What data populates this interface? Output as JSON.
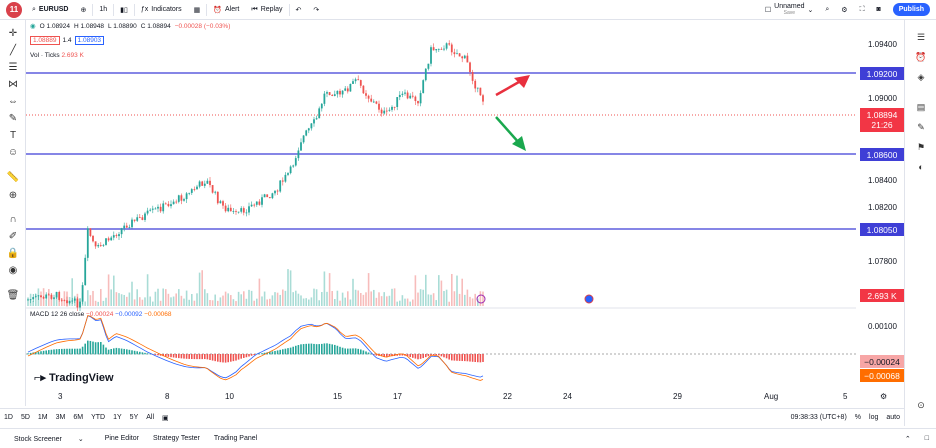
{
  "toolbar": {
    "symbol": "EURUSD",
    "interval": "1h",
    "indicators": "Indicators",
    "alert": "Alert",
    "replay": "Replay",
    "layout_name": "Unnamed",
    "layout_status": "Save",
    "publish": "Publish",
    "badge": "11"
  },
  "legend": {
    "o": "O 1.08924",
    "h": "H 1.08948",
    "l": "L 1.08890",
    "c": "C 1.08894",
    "chg": "−0.00028 (−0.03%)",
    "bid": "1.08889",
    "spread": "1.4",
    "ask": "1.08903",
    "vol_label": "Vol · Ticks",
    "vol_value": "2.693 K",
    "macd_label": "MACD 12 26 close",
    "macd_v1": "−0.00024",
    "macd_v2": "−0.00092",
    "macd_v3": "−0.00068"
  },
  "price_axis": {
    "ticks": [
      "1.09400",
      "1.09000",
      "1.08600",
      "1.08400",
      "1.08200",
      "1.07800"
    ],
    "level_1": "1.09200",
    "level_2": "1.08600",
    "level_3": "1.08050",
    "current": "1.08894",
    "countdown": "21:26",
    "volume": "2.693 K",
    "macd_tick": "0.00100",
    "macd_a": "−0.00024",
    "macd_b": "−0.00068"
  },
  "time_axis": [
    "3",
    "8",
    "10",
    "15",
    "17",
    "22",
    "24",
    "29",
    "Aug",
    "5"
  ],
  "ranges": [
    "1D",
    "5D",
    "1M",
    "3M",
    "6M",
    "YTD",
    "1Y",
    "5Y",
    "All"
  ],
  "clock": "09:38:33 (UTC+8)",
  "footer": [
    "Stock Screener",
    "Pine Editor",
    "Strategy Tester",
    "Trading Panel"
  ],
  "watermark": "TradingView",
  "colors": {
    "up": "#26a69a",
    "down": "#ef5350",
    "level_line": "#3f3fd6",
    "arrow_up": "#e8303e",
    "arrow_down": "#1aa84e",
    "macd_line": "#2962ff",
    "signal_line": "#ff6d00"
  },
  "icons": {
    "left": [
      "crosshair-icon",
      "trendline-icon",
      "fib-icon",
      "pattern-icon",
      "measure-icon",
      "brush-icon",
      "text-icon",
      "emoji-icon",
      "ruler-icon",
      "zoom-icon",
      "magnet-icon",
      "lock-draw-icon",
      "lock-icon",
      "eye-icon",
      "trash-icon"
    ],
    "right": [
      "watchlist-icon",
      "alerts-icon",
      "data-window-icon",
      "calendar-icon",
      "ideas-icon",
      "hotlist-icon",
      "chat-icon",
      "notifications-icon"
    ]
  }
}
